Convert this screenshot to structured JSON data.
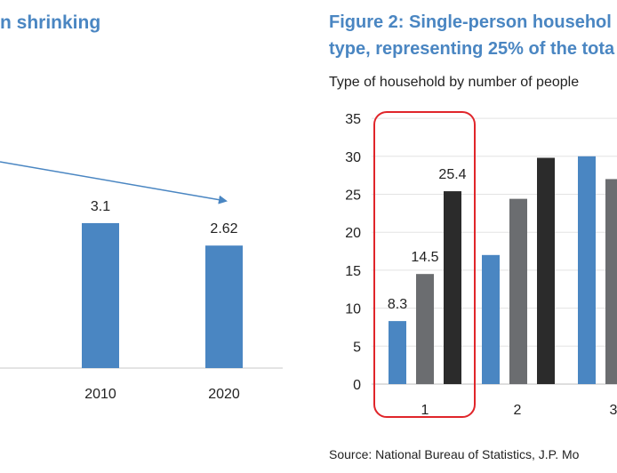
{
  "chart_data": [
    {
      "type": "bar",
      "title": "n shrinking",
      "categories": [
        "2010",
        "2020"
      ],
      "values": [
        3.1,
        2.62
      ],
      "data_labels": [
        "3.1",
        "2.62"
      ],
      "color": "#4a86c2",
      "ylim": [
        0,
        4
      ],
      "annotations": [
        "downward trend arrow"
      ]
    },
    {
      "type": "bar",
      "title_lines": [
        "Figure 2: Single-person househol",
        "type, representing 25% of the tota"
      ],
      "subtitle": "Type of household by number of people",
      "categories": [
        "1",
        "2",
        "3"
      ],
      "series": [
        {
          "name": "series-1",
          "color": "#4a86c2",
          "values": [
            8.3,
            17,
            30
          ]
        },
        {
          "name": "series-2",
          "color": "#6b6d70",
          "values": [
            14.5,
            24.4,
            27
          ]
        },
        {
          "name": "series-3",
          "color": "#2b2b2b",
          "values": [
            25.4,
            29.8,
            null
          ]
        }
      ],
      "data_labels": [
        "8.3",
        "14.5",
        "25.4"
      ],
      "yticks": [
        "0",
        "5",
        "10",
        "15",
        "20",
        "25",
        "30",
        "35"
      ],
      "ylim": [
        0,
        35
      ],
      "grid": true,
      "highlight": {
        "category": "1",
        "color": "#e0252a"
      },
      "source": "Source: National Bureau of Statistics, J.P. Mo"
    }
  ]
}
